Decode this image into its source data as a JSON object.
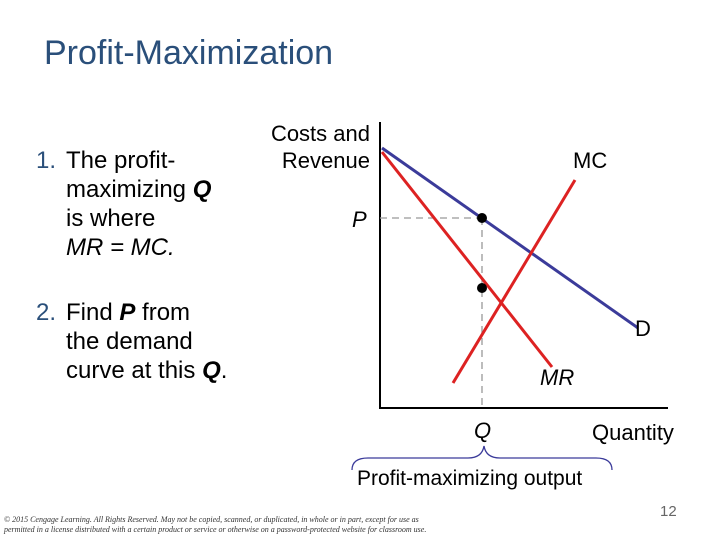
{
  "slide": {
    "title": "Profit-Maximization",
    "points": [
      {
        "num": "1.",
        "line1_a": "The profit-",
        "line2_a": "maximizing ",
        "line2_b": "Q",
        "line3": "is where",
        "line4": "MR = MC."
      },
      {
        "num": "2.",
        "line1_a": "Find ",
        "line1_b": "P",
        "line1_c": "  from",
        "line2": "the demand",
        "line3_a": "curve at this ",
        "line3_b": "Q",
        "line3_c": "."
      }
    ],
    "page_number": "12",
    "copyright": "© 2015 Cengage Learning. All Rights Reserved. May not be copied, scanned, or duplicated, in whole or in part, except for use as permitted in a license distributed with a certain product or service or otherwise on a password-protected website for classroom use."
  },
  "diagram": {
    "y_axis_line1": "Costs and",
    "y_axis_line2": "Revenue",
    "x_axis_label": "Quantity",
    "mc_label": "MC",
    "d_label": "D",
    "mr_label": "MR",
    "p_label": "P",
    "q_label": "Q",
    "output_label": "Profit-maximizing output",
    "colors": {
      "mc": "#dd2222",
      "mr": "#dd2222",
      "demand": "#3b3b9a",
      "dashed": "#999999",
      "axis": "#000000"
    }
  }
}
